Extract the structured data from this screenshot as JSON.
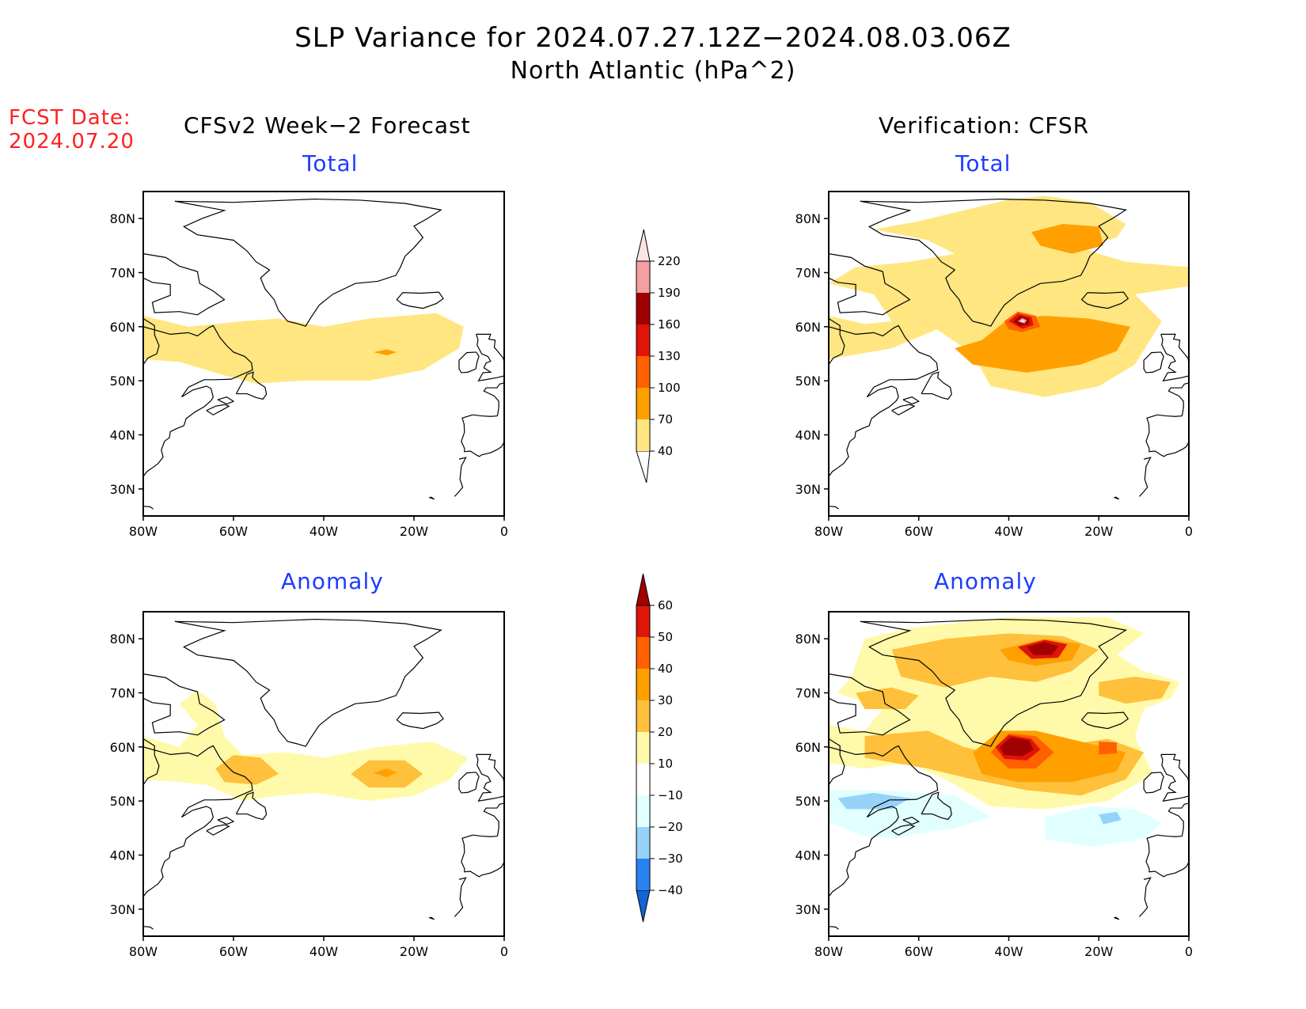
{
  "title": {
    "line1": "SLP Variance for 2024.07.27.12Z−2024.08.03.06Z",
    "line2": "North Atlantic (hPa^2)"
  },
  "forecast_date": {
    "label": "FCST Date:",
    "value": "2024.07.20"
  },
  "columns": {
    "left": "CFSv2 Week−2 Forecast",
    "right": "Verification: CFSR"
  },
  "rows": {
    "top": "Total",
    "bottom": "Anomaly"
  },
  "axes": {
    "lat_labels": [
      "30N",
      "40N",
      "50N",
      "60N",
      "70N",
      "80N"
    ],
    "lat_values": [
      30,
      40,
      50,
      60,
      70,
      80
    ],
    "lon_labels": [
      "80W",
      "60W",
      "40W",
      "20W",
      "0"
    ],
    "lon_values": [
      -80,
      -60,
      -40,
      -20,
      0
    ],
    "lon_range": [
      -80,
      0
    ],
    "lat_range": [
      25,
      85
    ]
  },
  "colorbars": {
    "total": {
      "levels": [
        "40",
        "70",
        "100",
        "130",
        "160",
        "190",
        "220"
      ],
      "colors": [
        "#ffe680",
        "#ffa000",
        "#ff6000",
        "#e01408",
        "#a00000",
        "#f4a0a0",
        "#fde4e4"
      ]
    },
    "anomaly": {
      "levels": [
        "-40",
        "-30",
        "-20",
        "-10",
        "10",
        "20",
        "30",
        "40",
        "50",
        "60"
      ],
      "colors": [
        "#1464d2",
        "#2882f0",
        "#96d2fa",
        "#e1ffff",
        "#ffffff",
        "#fffaaa",
        "#ffc03c",
        "#ffa000",
        "#ff6000",
        "#e01408",
        "#a00000"
      ]
    }
  },
  "chart_data": [
    {
      "type": "contour-map",
      "panel": "forecast-total",
      "regions": [
        {
          "level": 40,
          "lon": [
            -80,
            -8
          ],
          "lat": [
            50,
            62
          ],
          "note": "band across North Atlantic"
        },
        {
          "level": 70,
          "center": [
            -26,
            55
          ],
          "extent": "small"
        }
      ]
    },
    {
      "type": "contour-map",
      "panel": "verification-total",
      "regions": [
        {
          "level": 40,
          "lon": [
            -80,
            -6
          ],
          "lat": [
            47,
            84
          ]
        },
        {
          "level": 70,
          "center": [
            -37,
            57
          ]
        },
        {
          "level": 70,
          "center": [
            -27,
            76
          ]
        },
        {
          "level": 100,
          "center": [
            -37,
            61
          ]
        },
        {
          "level": 130,
          "center": [
            -37,
            61
          ]
        },
        {
          "level": 160,
          "center": [
            -37,
            61
          ]
        },
        {
          "level": 190,
          "center": [
            -37,
            61
          ]
        },
        {
          "level": 220,
          "center": [
            -37,
            61
          ]
        }
      ]
    },
    {
      "type": "contour-map",
      "panel": "forecast-anomaly",
      "regions": [
        {
          "level": 10,
          "lon": [
            -80,
            -8
          ],
          "lat": [
            50,
            70
          ]
        },
        {
          "level": 20,
          "center": [
            -57,
            56
          ]
        },
        {
          "level": 20,
          "center": [
            -26,
            55
          ]
        },
        {
          "level": 30,
          "center": [
            -26,
            55
          ]
        }
      ]
    },
    {
      "type": "contour-map",
      "panel": "verification-anomaly",
      "regions": [
        {
          "level": 10,
          "lon": [
            -80,
            -5
          ],
          "lat": [
            48,
            84
          ]
        },
        {
          "level": 20,
          "center": [
            -38,
            59
          ]
        },
        {
          "level": 20,
          "center": [
            -32,
            78
          ]
        },
        {
          "level": 30,
          "center": [
            -38,
            60
          ]
        },
        {
          "level": 40,
          "center": [
            -40,
            60
          ]
        },
        {
          "level": 50,
          "center": [
            -40,
            61
          ]
        },
        {
          "level": 60,
          "center": [
            -40,
            61
          ]
        },
        {
          "level": 60,
          "center": [
            -32,
            79
          ]
        },
        {
          "level": -10,
          "lon": [
            -80,
            -35
          ],
          "lat": [
            42,
            52
          ]
        },
        {
          "level": -10,
          "lon": [
            -33,
            -5
          ],
          "lat": [
            41,
            49
          ]
        },
        {
          "level": -20,
          "center": [
            -68,
            50
          ]
        },
        {
          "level": -20,
          "center": [
            -17,
            47
          ]
        }
      ]
    }
  ]
}
